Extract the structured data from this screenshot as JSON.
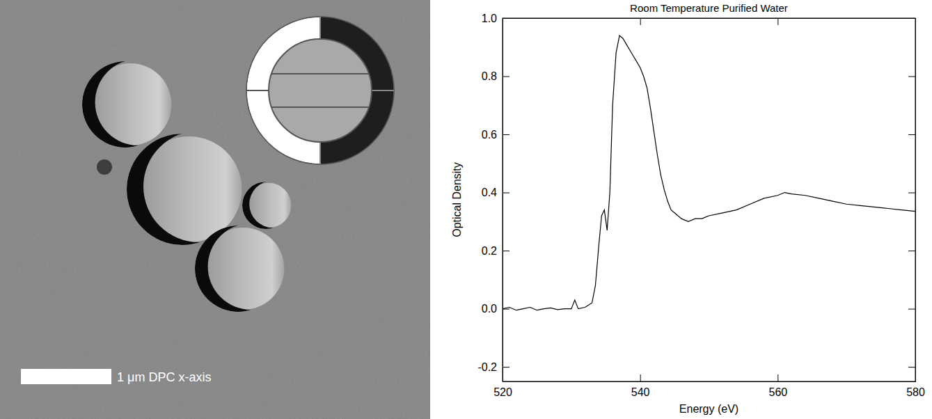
{
  "image": {
    "scale_bar_label": "1 μm DPC x-axis"
  },
  "chart_data": {
    "type": "line",
    "title": "Room Temperature Purified Water",
    "x_label": "Energy (eV)",
    "y_label": "Optical Density",
    "color": "#000000",
    "x": [
      520,
      521,
      522,
      523,
      524,
      525,
      526,
      527,
      528,
      529,
      530,
      530.5,
      531,
      532,
      533,
      533.5,
      534,
      534.4,
      534.8,
      535.2,
      535.6,
      536,
      536.5,
      537,
      537.5,
      538,
      538.5,
      539,
      539.5,
      540,
      540.5,
      541,
      541.5,
      542,
      542.5,
      543,
      543.5,
      544,
      544.5,
      545,
      546,
      547,
      548,
      549,
      550,
      552,
      554,
      556,
      558,
      560,
      561,
      562,
      564,
      566,
      568,
      570,
      572,
      574,
      576,
      578,
      580
    ],
    "values": [
      0.0,
      0.005,
      -0.005,
      0.0,
      0.005,
      -0.005,
      0.0,
      0.003,
      -0.003,
      0.0,
      0.0,
      0.03,
      0.0,
      0.005,
      0.02,
      0.08,
      0.22,
      0.32,
      0.34,
      0.27,
      0.4,
      0.7,
      0.88,
      0.94,
      0.93,
      0.91,
      0.89,
      0.87,
      0.85,
      0.83,
      0.8,
      0.76,
      0.69,
      0.61,
      0.53,
      0.46,
      0.41,
      0.37,
      0.34,
      0.33,
      0.31,
      0.3,
      0.31,
      0.31,
      0.32,
      0.33,
      0.34,
      0.36,
      0.38,
      0.39,
      0.4,
      0.395,
      0.39,
      0.38,
      0.37,
      0.36,
      0.355,
      0.35,
      0.345,
      0.34,
      0.335
    ],
    "xlim": [
      520,
      580
    ],
    "xticks": [
      520,
      540,
      560,
      580
    ],
    "ylim": [
      -0.25,
      1.0
    ],
    "yticks": [
      -0.2,
      {
        "value": 0,
        "label": "0.0"
      },
      0.2,
      0.4,
      0.6,
      0.8,
      {
        "value": 1,
        "label": "1.0"
      }
    ],
    "grid": false
  }
}
